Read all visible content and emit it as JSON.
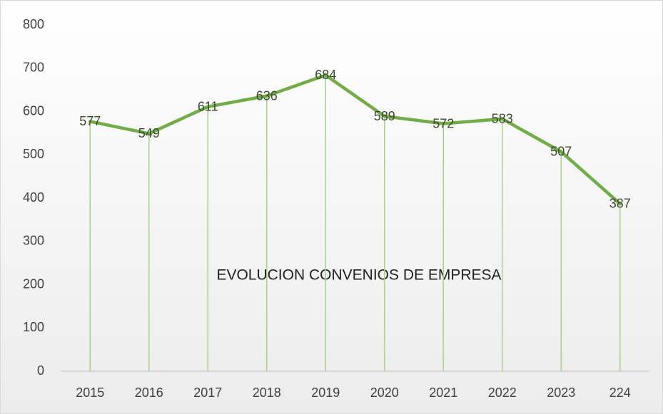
{
  "chart_data": {
    "type": "line",
    "title": "EVOLUCION CONVENIOS DE EMPRESA",
    "categories": [
      "2015",
      "2016",
      "2017",
      "2018",
      "2019",
      "2020",
      "2021",
      "2022",
      "2023",
      "224"
    ],
    "values": [
      577,
      549,
      611,
      636,
      684,
      589,
      572,
      583,
      507,
      387
    ],
    "color": "#70ad47",
    "drop_lines": true,
    "ylim": [
      0,
      800
    ],
    "yticks": [
      0,
      100,
      200,
      300,
      400,
      500,
      600,
      700,
      800
    ],
    "grid": false
  }
}
